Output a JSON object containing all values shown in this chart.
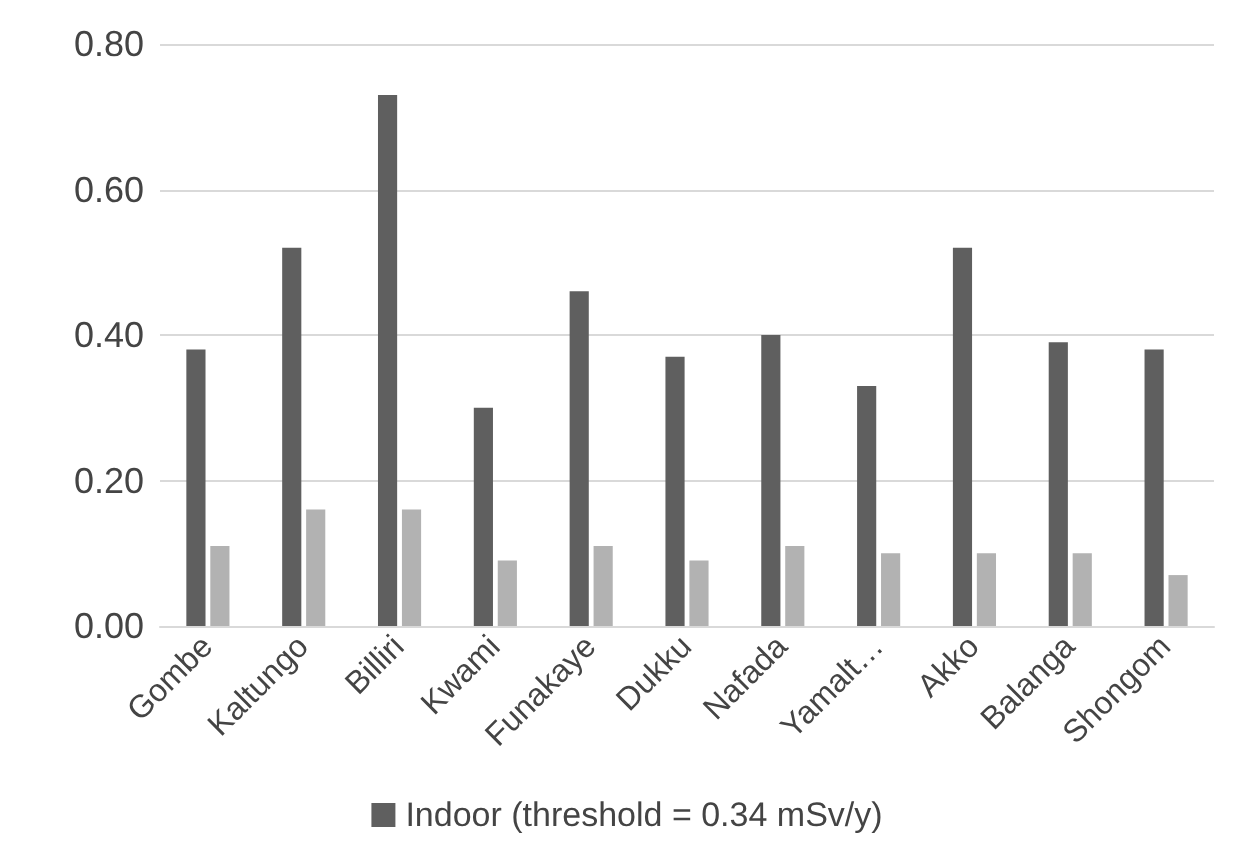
{
  "chart_data": {
    "type": "bar",
    "categories": [
      "Gombe",
      "Kaltungo",
      "Billiri",
      "Kwami",
      "Funakaye",
      "Dukku",
      "Nafada",
      "Yamalt…",
      "Akko",
      "Balanga",
      "Shongom"
    ],
    "series": [
      {
        "name": "Indoor (threshold = 0.34 mSv/y)",
        "color": "#5f5f5f",
        "values": [
          0.38,
          0.52,
          0.73,
          0.3,
          0.46,
          0.37,
          0.4,
          0.33,
          0.52,
          0.39,
          0.38
        ]
      },
      {
        "color": "#b2b2b2",
        "values": [
          0.11,
          0.16,
          0.16,
          0.09,
          0.11,
          0.09,
          0.11,
          0.1,
          0.1,
          0.1,
          0.07
        ]
      }
    ],
    "ylim": [
      0,
      0.8
    ],
    "yticks": [
      {
        "value": 0,
        "label": "0.00"
      },
      {
        "value": 0.2,
        "label": "0.20"
      },
      {
        "value": 0.4,
        "label": "0.40"
      },
      {
        "value": 0.6,
        "label": "0.60"
      },
      {
        "value": 0.8,
        "label": "0.80"
      }
    ],
    "grid": "y",
    "legend": "bottom"
  }
}
